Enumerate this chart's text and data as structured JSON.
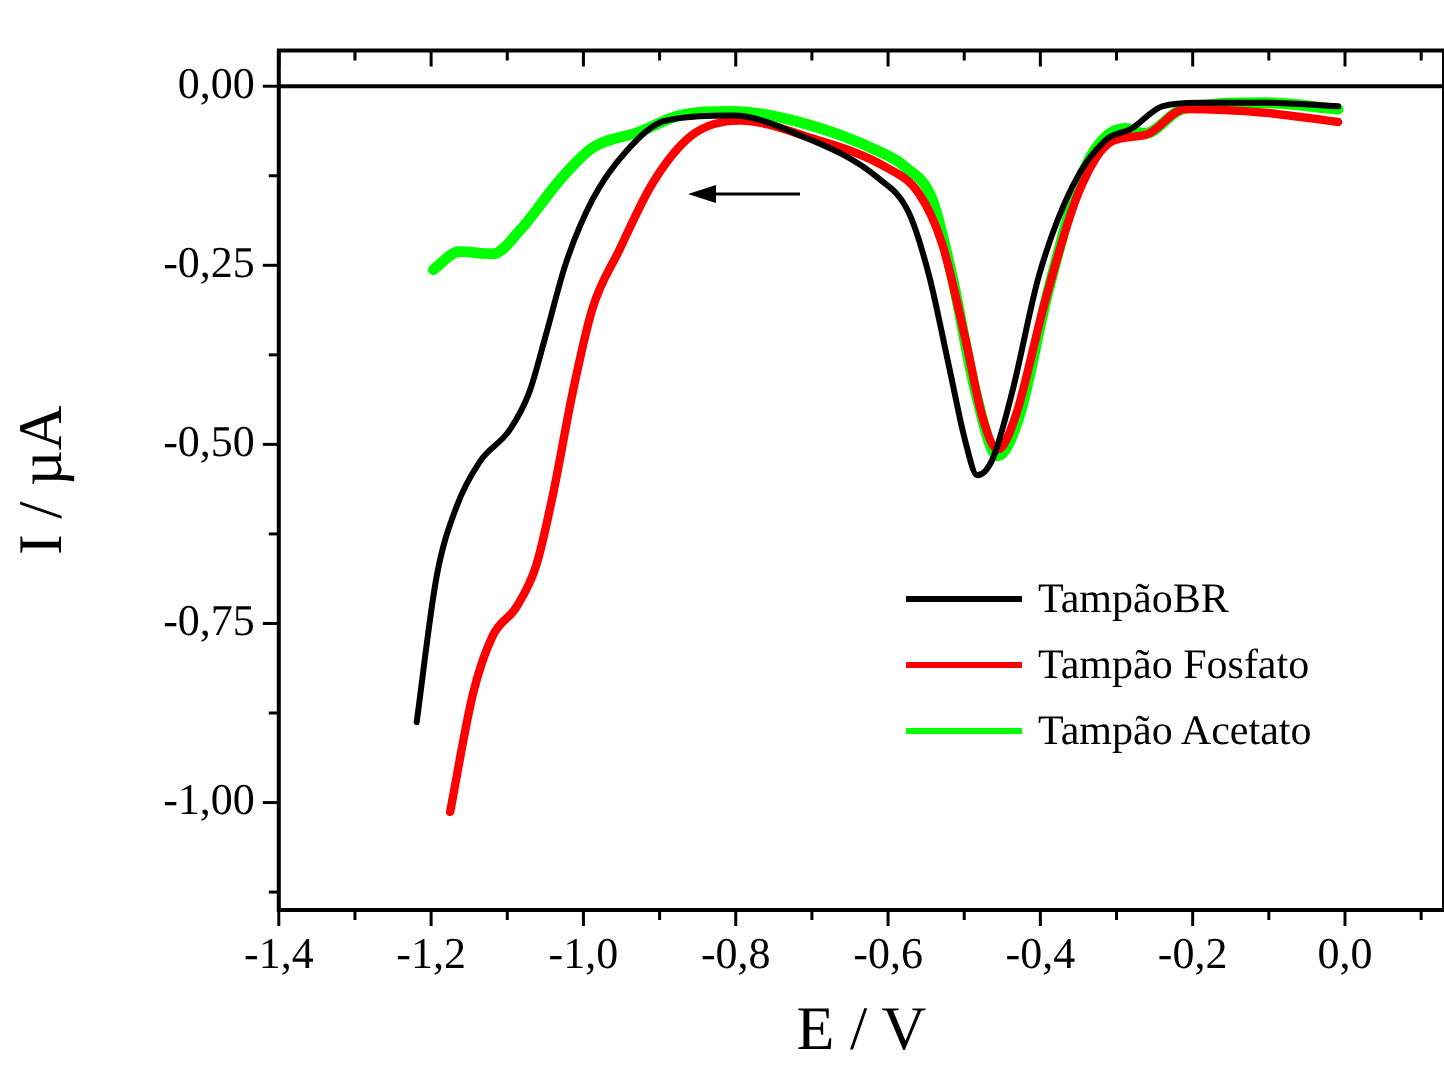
{
  "chart_data": {
    "type": "line",
    "xlabel": "E / V",
    "ylabel": "I / µA",
    "xlim": [
      -1.4,
      0.13
    ],
    "xticks": [
      {
        "value": -1.4,
        "label": "-1,4"
      },
      {
        "value": -1.3,
        "label": null
      },
      {
        "value": -1.2,
        "label": "-1,2"
      },
      {
        "value": -1.1,
        "label": null
      },
      {
        "value": -1.0,
        "label": "-1,0"
      },
      {
        "value": -0.9,
        "label": null
      },
      {
        "value": -0.8,
        "label": "-0,8"
      },
      {
        "value": -0.7,
        "label": null
      },
      {
        "value": -0.6,
        "label": "-0,6"
      },
      {
        "value": -0.5,
        "label": null
      },
      {
        "value": -0.4,
        "label": "-0,4"
      },
      {
        "value": -0.3,
        "label": null
      },
      {
        "value": -0.2,
        "label": "-0,2"
      },
      {
        "value": -0.1,
        "label": null
      },
      {
        "value": 0.0,
        "label": "0,0"
      },
      {
        "value": 0.1,
        "label": null
      }
    ],
    "ylim": [
      -1.15,
      0.05
    ],
    "yticks": [
      {
        "value": 0,
        "label": "0,00"
      },
      {
        "value": -0.125,
        "label": null
      },
      {
        "value": -0.25,
        "label": "-0,25"
      },
      {
        "value": -0.375,
        "label": null
      },
      {
        "value": -0.5,
        "label": "-0,50"
      },
      {
        "value": -0.625,
        "label": null
      },
      {
        "value": -0.75,
        "label": "-0,75"
      },
      {
        "value": -0.875,
        "label": null
      },
      {
        "value": -1.0,
        "label": "-1,00"
      },
      {
        "value": -1.125,
        "label": null
      }
    ],
    "grid": false,
    "legend": "bottom right",
    "marker": "none",
    "line_style": "solid",
    "ref_lines": [
      {
        "axis": "y",
        "value": 0,
        "color": "#000000"
      }
    ],
    "series": [
      {
        "name": "TampãoBR",
        "color": "#000000",
        "x": [
          -1.219,
          -1.193,
          -1.167,
          -1.136,
          -1.097,
          -1.071,
          -1.049,
          -1.023,
          -0.988,
          -0.944,
          -0.892,
          -0.804,
          -0.717,
          -0.612,
          -0.573,
          -0.546,
          -0.52,
          -0.498,
          -0.483,
          -0.463,
          -0.437,
          -0.402,
          -0.358,
          -0.315,
          -0.28,
          -0.24,
          -0.192,
          -0.105,
          -0.009
        ],
        "values": [
          -0.888,
          -0.686,
          -0.588,
          -0.524,
          -0.48,
          -0.427,
          -0.346,
          -0.247,
          -0.158,
          -0.091,
          -0.048,
          -0.041,
          -0.068,
          -0.129,
          -0.176,
          -0.265,
          -0.391,
          -0.498,
          -0.543,
          -0.521,
          -0.427,
          -0.265,
          -0.14,
          -0.076,
          -0.059,
          -0.028,
          -0.023,
          -0.023,
          -0.028
        ]
      },
      {
        "name": "Tampão Fosfato",
        "color": "#ff0000",
        "x": [
          -1.175,
          -1.145,
          -1.119,
          -1.088,
          -1.062,
          -1.04,
          -1.014,
          -0.988,
          -0.953,
          -0.909,
          -0.857,
          -0.795,
          -0.699,
          -0.603,
          -0.56,
          -0.529,
          -0.498,
          -0.476,
          -0.456,
          -0.433,
          -0.394,
          -0.35,
          -0.306,
          -0.262,
          -0.21,
          -0.105,
          -0.009
        ],
        "values": [
          -1.013,
          -0.848,
          -0.767,
          -0.727,
          -0.669,
          -0.57,
          -0.427,
          -0.31,
          -0.229,
          -0.135,
          -0.068,
          -0.048,
          -0.073,
          -0.113,
          -0.149,
          -0.22,
          -0.355,
          -0.462,
          -0.507,
          -0.462,
          -0.301,
          -0.149,
          -0.077,
          -0.068,
          -0.032,
          -0.037,
          -0.05
        ]
      },
      {
        "name": "Tampão Acetato",
        "color": "#00ff00",
        "x": [
          -1.197,
          -1.163,
          -1.119,
          -1.084,
          -1.031,
          -0.988,
          -0.927,
          -0.874,
          -0.804,
          -0.717,
          -0.612,
          -0.577,
          -0.542,
          -0.516,
          -0.485,
          -0.456,
          -0.428,
          -0.389,
          -0.341,
          -0.289,
          -0.262,
          -0.214,
          -0.105,
          -0.009
        ],
        "values": [
          -0.256,
          -0.231,
          -0.234,
          -0.202,
          -0.131,
          -0.086,
          -0.064,
          -0.041,
          -0.035,
          -0.05,
          -0.091,
          -0.113,
          -0.158,
          -0.265,
          -0.427,
          -0.516,
          -0.462,
          -0.283,
          -0.113,
          -0.059,
          -0.066,
          -0.032,
          -0.023,
          -0.032
        ]
      }
    ]
  }
}
